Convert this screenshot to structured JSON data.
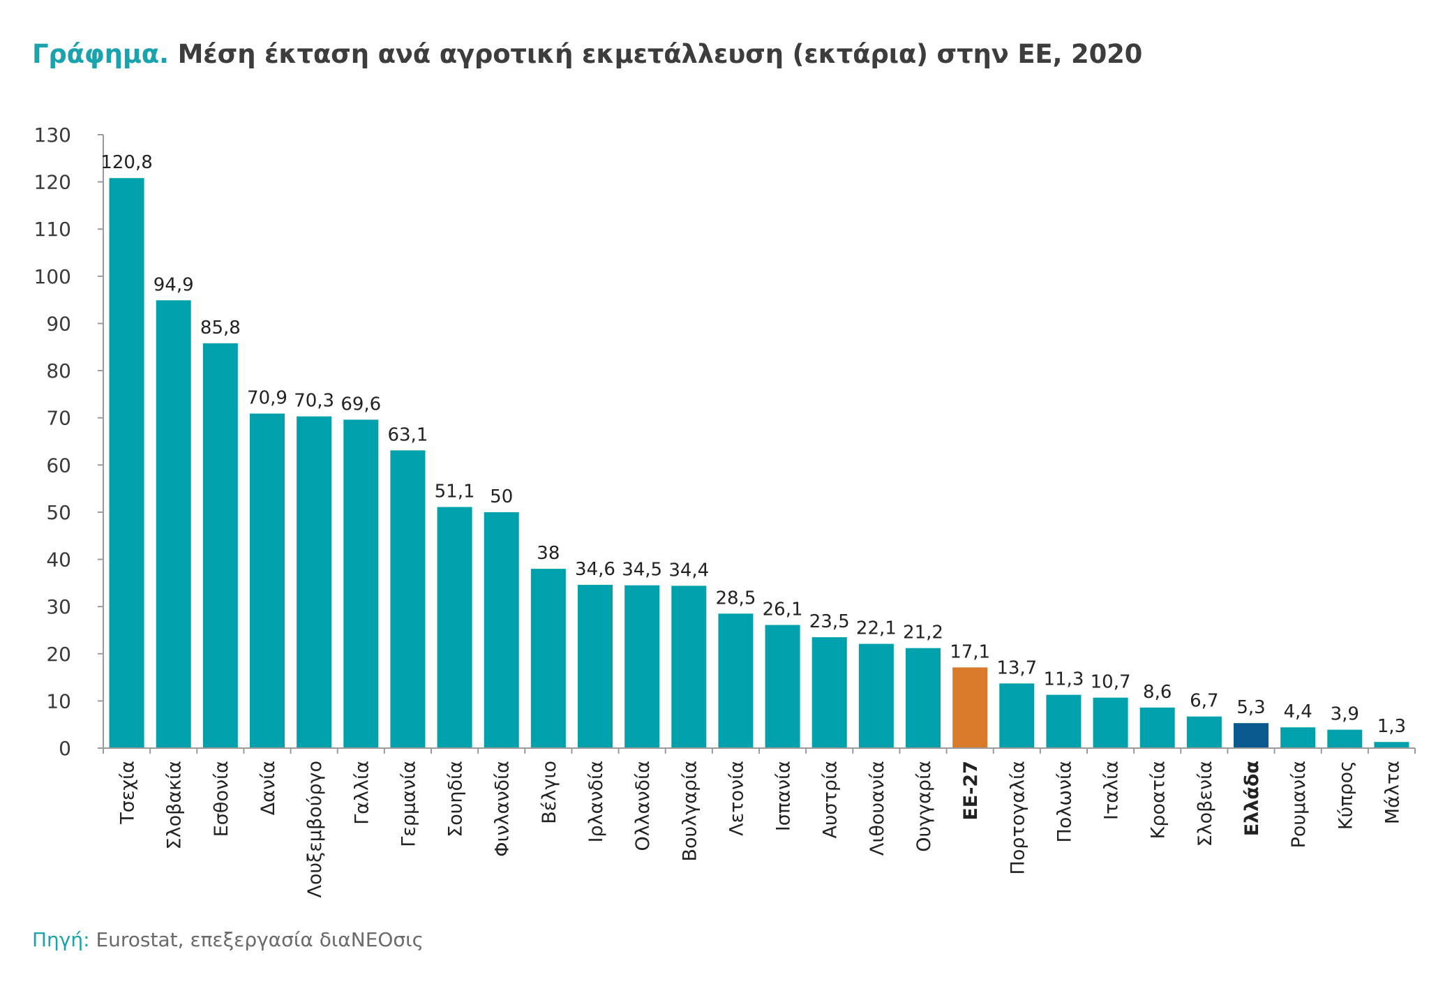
{
  "title": {
    "lead": "Γράφημα.",
    "text": "Μέση έκταση ανά αγροτική εκμετάλλευση (εκτάρια) στην ΕΕ, 2020"
  },
  "source": {
    "lead": "Πηγή:",
    "text": "Eurostat, επεξεργασία διαΝΕΟσις"
  },
  "colors": {
    "default_bar": "#00a1ad",
    "eu_bar": "#d97b2b",
    "greece_bar": "#0b5a8f",
    "title_accent": "#1aa3ad"
  },
  "chart_data": {
    "type": "bar",
    "title": "Μέση έκταση ανά αγροτική εκμετάλλευση (εκτάρια) στην ΕΕ, 2020",
    "xlabel": "",
    "ylabel": "",
    "ylim": [
      0,
      130
    ],
    "yticks": [
      0,
      10,
      20,
      30,
      40,
      50,
      60,
      70,
      80,
      90,
      100,
      110,
      120,
      130
    ],
    "grid": false,
    "categories": [
      "Τσεχία",
      "Σλοβακία",
      "Εσθονία",
      "Δανία",
      "Λουξεμβούργο",
      "Γαλλία",
      "Γερμανία",
      "Σουηδία",
      "Φινλανδία",
      "Βέλγιο",
      "Ιρλανδία",
      "Ολλανδία",
      "Βουλγαρία",
      "Λετονία",
      "Ισπανία",
      "Αυστρία",
      "Λιθουανία",
      "Ουγγαρία",
      "ΕΕ-27",
      "Πορτογαλία",
      "Πολωνία",
      "Ιταλία",
      "Κροατία",
      "Σλοβενία",
      "Ελλάδα",
      "Ρουμανία",
      "Κύπρος",
      "Μάλτα"
    ],
    "values": [
      120.8,
      94.9,
      85.8,
      70.9,
      70.3,
      69.6,
      63.1,
      51.1,
      50,
      38,
      34.6,
      34.5,
      34.4,
      28.5,
      26.1,
      23.5,
      22.1,
      21.2,
      17.1,
      13.7,
      11.3,
      10.7,
      8.6,
      6.7,
      5.3,
      4.4,
      3.9,
      1.3
    ],
    "value_labels": [
      "120,8",
      "94,9",
      "85,8",
      "70,9",
      "70,3",
      "69,6",
      "63,1",
      "51,1",
      "50",
      "38",
      "34,6",
      "34,5",
      "34,4",
      "28,5",
      "26,1",
      "23,5",
      "22,1",
      "21,2",
      "17,1",
      "13,7",
      "11,3",
      "10,7",
      "8,6",
      "6,7",
      "5,3",
      "4,4",
      "3,9",
      "1,3"
    ],
    "highlight": {
      "ΕΕ-27": "eu_bar",
      "Ελλάδα": "greece_bar"
    },
    "bold_categories": [
      "ΕΕ-27",
      "Ελλάδα"
    ]
  }
}
